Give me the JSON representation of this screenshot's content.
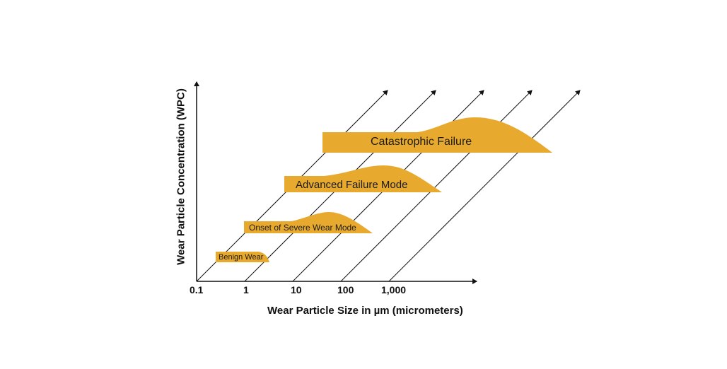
{
  "colors": {
    "fill": "#E8AA2E",
    "ink": "#111111"
  },
  "axes": {
    "x_label": "Wear Particle Size in µm (micrometers)",
    "y_label": "Wear Particle Concentration (WPC)",
    "x_ticks": [
      "0.1",
      "1",
      "10",
      "100",
      "1,000"
    ]
  },
  "zones": [
    {
      "id": "benign",
      "label": "Benign Wear"
    },
    {
      "id": "onset",
      "label": "Onset of Severe Wear Mode"
    },
    {
      "id": "advanced",
      "label": "Advanced Failure Mode"
    },
    {
      "id": "catastrophic",
      "label": "Catastrophic Failure"
    }
  ]
}
